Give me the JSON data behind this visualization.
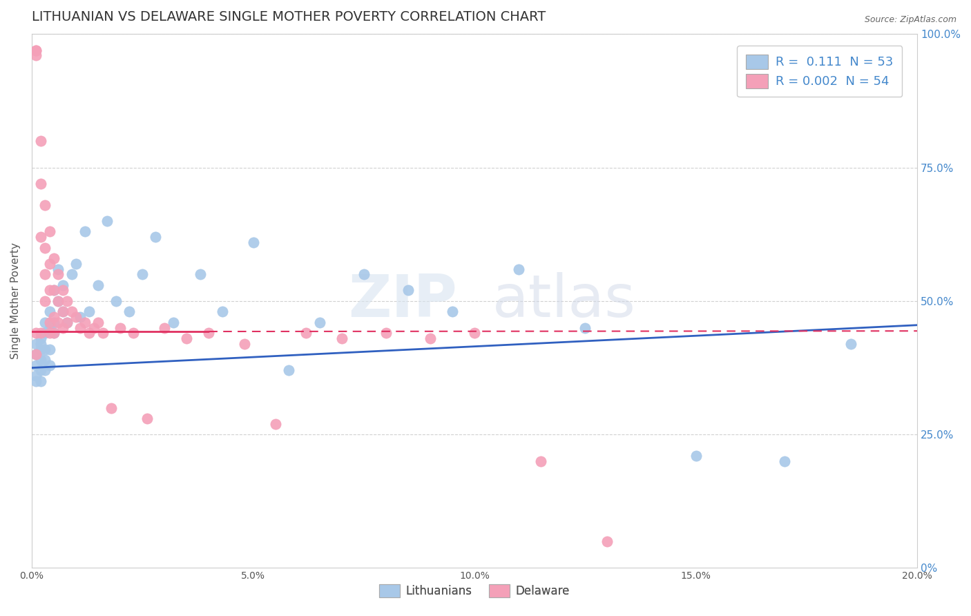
{
  "title": "LITHUANIAN VS DELAWARE SINGLE MOTHER POVERTY CORRELATION CHART",
  "source": "Source: ZipAtlas.com",
  "ylabel": "Single Mother Poverty",
  "legend_label1": "Lithuanians",
  "legend_label2": "Delaware",
  "blue_color": "#a8c8e8",
  "pink_color": "#f4a0b8",
  "blue_line_color": "#3060c0",
  "pink_line_color": "#e03060",
  "watermark_text": "ZIPatlas",
  "blue_scatter": {
    "x": [
      0.001,
      0.001,
      0.001,
      0.001,
      0.001,
      0.002,
      0.002,
      0.002,
      0.002,
      0.002,
      0.002,
      0.003,
      0.003,
      0.003,
      0.003,
      0.003,
      0.004,
      0.004,
      0.004,
      0.004,
      0.005,
      0.005,
      0.005,
      0.006,
      0.006,
      0.007,
      0.007,
      0.008,
      0.009,
      0.01,
      0.011,
      0.012,
      0.013,
      0.015,
      0.017,
      0.019,
      0.022,
      0.025,
      0.028,
      0.032,
      0.038,
      0.043,
      0.05,
      0.058,
      0.065,
      0.075,
      0.085,
      0.095,
      0.11,
      0.125,
      0.15,
      0.17,
      0.185
    ],
    "y": [
      0.38,
      0.36,
      0.4,
      0.42,
      0.35,
      0.37,
      0.39,
      0.41,
      0.35,
      0.42,
      0.43,
      0.37,
      0.39,
      0.41,
      0.44,
      0.46,
      0.38,
      0.41,
      0.48,
      0.45,
      0.46,
      0.52,
      0.44,
      0.5,
      0.56,
      0.48,
      0.53,
      0.46,
      0.55,
      0.57,
      0.47,
      0.63,
      0.48,
      0.53,
      0.65,
      0.5,
      0.48,
      0.55,
      0.62,
      0.46,
      0.55,
      0.48,
      0.61,
      0.37,
      0.46,
      0.55,
      0.52,
      0.48,
      0.56,
      0.45,
      0.21,
      0.2,
      0.42
    ]
  },
  "pink_scatter": {
    "x": [
      0.001,
      0.001,
      0.001,
      0.001,
      0.001,
      0.002,
      0.002,
      0.002,
      0.002,
      0.003,
      0.003,
      0.003,
      0.003,
      0.004,
      0.004,
      0.004,
      0.004,
      0.004,
      0.005,
      0.005,
      0.005,
      0.005,
      0.006,
      0.006,
      0.006,
      0.007,
      0.007,
      0.007,
      0.008,
      0.008,
      0.009,
      0.01,
      0.011,
      0.012,
      0.013,
      0.014,
      0.015,
      0.016,
      0.018,
      0.02,
      0.023,
      0.026,
      0.03,
      0.035,
      0.04,
      0.048,
      0.055,
      0.062,
      0.07,
      0.08,
      0.09,
      0.1,
      0.115,
      0.13
    ],
    "y": [
      0.97,
      0.96,
      0.97,
      0.44,
      0.4,
      0.8,
      0.72,
      0.62,
      0.44,
      0.68,
      0.6,
      0.55,
      0.5,
      0.63,
      0.57,
      0.52,
      0.46,
      0.44,
      0.58,
      0.52,
      0.47,
      0.44,
      0.55,
      0.5,
      0.46,
      0.52,
      0.48,
      0.45,
      0.5,
      0.46,
      0.48,
      0.47,
      0.45,
      0.46,
      0.44,
      0.45,
      0.46,
      0.44,
      0.3,
      0.45,
      0.44,
      0.28,
      0.45,
      0.43,
      0.44,
      0.42,
      0.27,
      0.44,
      0.43,
      0.44,
      0.43,
      0.44,
      0.2,
      0.05
    ]
  },
  "blue_line": {
    "x0": 0.0,
    "x1": 0.2,
    "y0": 0.375,
    "y1": 0.455
  },
  "pink_line": {
    "x0": 0.0,
    "x1": 0.2,
    "y0": 0.443,
    "y1": 0.444
  },
  "xlim": [
    0.0,
    0.2
  ],
  "ylim": [
    0.0,
    1.0
  ],
  "xticks": [
    0.0,
    0.05,
    0.1,
    0.15,
    0.2
  ],
  "xticklabels": [
    "0.0%",
    "5.0%",
    "10.0%",
    "15.0%",
    "20.0%"
  ],
  "yticks_right": [
    0.0,
    0.25,
    0.5,
    0.75,
    1.0
  ],
  "yticklabels_right": [
    "0%",
    "25.0%",
    "50.0%",
    "75.0%",
    "100.0%"
  ],
  "figsize": [
    14.06,
    8.92
  ],
  "dpi": 100,
  "background_color": "#ffffff",
  "grid_color": "#cccccc",
  "title_fontsize": 14,
  "axis_label_fontsize": 11
}
